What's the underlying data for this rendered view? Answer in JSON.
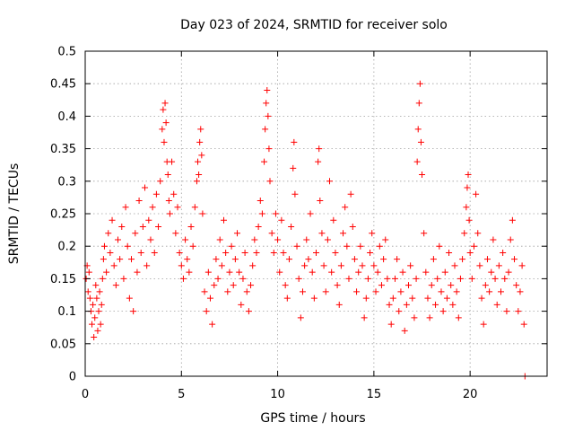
{
  "chart_data": {
    "type": "scatter",
    "title": "Day 023 of 2024, SRMTID for receiver solo",
    "xlabel": "GPS time / hours",
    "ylabel": "SRMTID / TECUs",
    "xlim": [
      0,
      24
    ],
    "ylim": [
      0,
      0.5
    ],
    "x_ticks": [
      0,
      5,
      10,
      15,
      20
    ],
    "x_tick_labels": [
      "0",
      "5",
      "10",
      "15",
      "20"
    ],
    "y_ticks": [
      0,
      0.05,
      0.1,
      0.15,
      0.2,
      0.25,
      0.3,
      0.35,
      0.4,
      0.45,
      0.5
    ],
    "y_tick_labels": [
      "0",
      "0.05",
      "0.1",
      "0.15",
      "0.2",
      "0.25",
      "0.3",
      "0.35",
      "0.4",
      "0.45",
      "0.5"
    ],
    "grid": true,
    "marker": "plus",
    "color": "#ff0000",
    "series": [
      {
        "name": "SRMTID",
        "points": [
          [
            0.05,
            0.15
          ],
          [
            0.1,
            0.17
          ],
          [
            0.15,
            0.13
          ],
          [
            0.2,
            0.16
          ],
          [
            0.25,
            0.12
          ],
          [
            0.3,
            0.1
          ],
          [
            0.35,
            0.08
          ],
          [
            0.4,
            0.11
          ],
          [
            0.45,
            0.06
          ],
          [
            0.5,
            0.09
          ],
          [
            0.55,
            0.14
          ],
          [
            0.6,
            0.12
          ],
          [
            0.65,
            0.07
          ],
          [
            0.7,
            0.1
          ],
          [
            0.75,
            0.13
          ],
          [
            0.8,
            0.08
          ],
          [
            0.85,
            0.11
          ],
          [
            0.9,
            0.15
          ],
          [
            0.95,
            0.18
          ],
          [
            1.0,
            0.2
          ],
          [
            1.1,
            0.16
          ],
          [
            1.2,
            0.22
          ],
          [
            1.3,
            0.19
          ],
          [
            1.4,
            0.24
          ],
          [
            1.5,
            0.17
          ],
          [
            1.6,
            0.14
          ],
          [
            1.7,
            0.21
          ],
          [
            1.8,
            0.18
          ],
          [
            1.9,
            0.23
          ],
          [
            2.0,
            0.15
          ],
          [
            2.1,
            0.26
          ],
          [
            2.2,
            0.2
          ],
          [
            2.3,
            0.12
          ],
          [
            2.4,
            0.18
          ],
          [
            2.5,
            0.1
          ],
          [
            2.6,
            0.22
          ],
          [
            2.7,
            0.16
          ],
          [
            2.8,
            0.27
          ],
          [
            2.9,
            0.19
          ],
          [
            3.0,
            0.23
          ],
          [
            3.1,
            0.29
          ],
          [
            3.2,
            0.17
          ],
          [
            3.3,
            0.24
          ],
          [
            3.4,
            0.21
          ],
          [
            3.5,
            0.26
          ],
          [
            3.6,
            0.19
          ],
          [
            3.7,
            0.28
          ],
          [
            3.8,
            0.23
          ],
          [
            3.9,
            0.3
          ],
          [
            4.0,
            0.38
          ],
          [
            4.05,
            0.41
          ],
          [
            4.1,
            0.36
          ],
          [
            4.15,
            0.42
          ],
          [
            4.2,
            0.39
          ],
          [
            4.25,
            0.33
          ],
          [
            4.3,
            0.31
          ],
          [
            4.35,
            0.27
          ],
          [
            4.4,
            0.25
          ],
          [
            4.5,
            0.33
          ],
          [
            4.6,
            0.28
          ],
          [
            4.7,
            0.22
          ],
          [
            4.8,
            0.26
          ],
          [
            4.9,
            0.19
          ],
          [
            5.0,
            0.17
          ],
          [
            5.1,
            0.15
          ],
          [
            5.2,
            0.21
          ],
          [
            5.3,
            0.18
          ],
          [
            5.4,
            0.16
          ],
          [
            5.5,
            0.23
          ],
          [
            5.6,
            0.2
          ],
          [
            5.7,
            0.26
          ],
          [
            5.8,
            0.3
          ],
          [
            5.85,
            0.33
          ],
          [
            5.9,
            0.31
          ],
          [
            5.95,
            0.36
          ],
          [
            6.0,
            0.38
          ],
          [
            6.05,
            0.34
          ],
          [
            6.1,
            0.25
          ],
          [
            6.2,
            0.13
          ],
          [
            6.3,
            0.1
          ],
          [
            6.4,
            0.16
          ],
          [
            6.5,
            0.12
          ],
          [
            6.6,
            0.08
          ],
          [
            6.7,
            0.14
          ],
          [
            6.8,
            0.18
          ],
          [
            6.9,
            0.15
          ],
          [
            7.0,
            0.21
          ],
          [
            7.1,
            0.17
          ],
          [
            7.2,
            0.24
          ],
          [
            7.3,
            0.19
          ],
          [
            7.4,
            0.13
          ],
          [
            7.5,
            0.16
          ],
          [
            7.6,
            0.2
          ],
          [
            7.7,
            0.14
          ],
          [
            7.8,
            0.18
          ],
          [
            7.9,
            0.22
          ],
          [
            8.0,
            0.16
          ],
          [
            8.1,
            0.11
          ],
          [
            8.2,
            0.15
          ],
          [
            8.3,
            0.19
          ],
          [
            8.4,
            0.13
          ],
          [
            8.5,
            0.1
          ],
          [
            8.6,
            0.14
          ],
          [
            8.7,
            0.17
          ],
          [
            8.8,
            0.21
          ],
          [
            8.9,
            0.19
          ],
          [
            9.0,
            0.23
          ],
          [
            9.1,
            0.27
          ],
          [
            9.2,
            0.25
          ],
          [
            9.3,
            0.33
          ],
          [
            9.35,
            0.38
          ],
          [
            9.4,
            0.42
          ],
          [
            9.45,
            0.44
          ],
          [
            9.5,
            0.4
          ],
          [
            9.55,
            0.35
          ],
          [
            9.6,
            0.3
          ],
          [
            9.7,
            0.22
          ],
          [
            9.8,
            0.19
          ],
          [
            9.9,
            0.25
          ],
          [
            10.0,
            0.21
          ],
          [
            10.1,
            0.16
          ],
          [
            10.2,
            0.24
          ],
          [
            10.3,
            0.19
          ],
          [
            10.4,
            0.14
          ],
          [
            10.5,
            0.12
          ],
          [
            10.6,
            0.18
          ],
          [
            10.7,
            0.23
          ],
          [
            10.8,
            0.32
          ],
          [
            10.85,
            0.36
          ],
          [
            10.9,
            0.28
          ],
          [
            11.0,
            0.2
          ],
          [
            11.1,
            0.15
          ],
          [
            11.2,
            0.09
          ],
          [
            11.3,
            0.13
          ],
          [
            11.4,
            0.17
          ],
          [
            11.5,
            0.21
          ],
          [
            11.6,
            0.18
          ],
          [
            11.7,
            0.25
          ],
          [
            11.8,
            0.16
          ],
          [
            11.9,
            0.12
          ],
          [
            12.0,
            0.19
          ],
          [
            12.1,
            0.33
          ],
          [
            12.15,
            0.35
          ],
          [
            12.2,
            0.27
          ],
          [
            12.3,
            0.22
          ],
          [
            12.4,
            0.17
          ],
          [
            12.5,
            0.13
          ],
          [
            12.6,
            0.21
          ],
          [
            12.7,
            0.3
          ],
          [
            12.8,
            0.16
          ],
          [
            12.9,
            0.24
          ],
          [
            13.0,
            0.19
          ],
          [
            13.1,
            0.14
          ],
          [
            13.2,
            0.11
          ],
          [
            13.3,
            0.17
          ],
          [
            13.4,
            0.22
          ],
          [
            13.5,
            0.26
          ],
          [
            13.6,
            0.2
          ],
          [
            13.7,
            0.15
          ],
          [
            13.8,
            0.28
          ],
          [
            13.9,
            0.23
          ],
          [
            14.0,
            0.18
          ],
          [
            14.1,
            0.13
          ],
          [
            14.2,
            0.16
          ],
          [
            14.3,
            0.2
          ],
          [
            14.4,
            0.17
          ],
          [
            14.5,
            0.09
          ],
          [
            14.6,
            0.12
          ],
          [
            14.7,
            0.15
          ],
          [
            14.8,
            0.19
          ],
          [
            14.9,
            0.22
          ],
          [
            15.0,
            0.17
          ],
          [
            15.1,
            0.13
          ],
          [
            15.2,
            0.16
          ],
          [
            15.3,
            0.2
          ],
          [
            15.4,
            0.14
          ],
          [
            15.5,
            0.18
          ],
          [
            15.6,
            0.21
          ],
          [
            15.7,
            0.15
          ],
          [
            15.8,
            0.11
          ],
          [
            15.9,
            0.08
          ],
          [
            16.0,
            0.12
          ],
          [
            16.1,
            0.15
          ],
          [
            16.2,
            0.18
          ],
          [
            16.3,
            0.1
          ],
          [
            16.4,
            0.13
          ],
          [
            16.5,
            0.16
          ],
          [
            16.6,
            0.07
          ],
          [
            16.7,
            0.11
          ],
          [
            16.8,
            0.14
          ],
          [
            16.9,
            0.17
          ],
          [
            17.0,
            0.12
          ],
          [
            17.1,
            0.09
          ],
          [
            17.2,
            0.15
          ],
          [
            17.25,
            0.33
          ],
          [
            17.3,
            0.38
          ],
          [
            17.35,
            0.42
          ],
          [
            17.4,
            0.45
          ],
          [
            17.45,
            0.36
          ],
          [
            17.5,
            0.31
          ],
          [
            17.6,
            0.22
          ],
          [
            17.7,
            0.16
          ],
          [
            17.8,
            0.12
          ],
          [
            17.9,
            0.09
          ],
          [
            18.0,
            0.14
          ],
          [
            18.1,
            0.18
          ],
          [
            18.2,
            0.11
          ],
          [
            18.3,
            0.15
          ],
          [
            18.4,
            0.2
          ],
          [
            18.5,
            0.13
          ],
          [
            18.6,
            0.1
          ],
          [
            18.7,
            0.16
          ],
          [
            18.8,
            0.12
          ],
          [
            18.9,
            0.19
          ],
          [
            19.0,
            0.14
          ],
          [
            19.1,
            0.11
          ],
          [
            19.2,
            0.17
          ],
          [
            19.3,
            0.13
          ],
          [
            19.4,
            0.09
          ],
          [
            19.5,
            0.15
          ],
          [
            19.6,
            0.18
          ],
          [
            19.7,
            0.22
          ],
          [
            19.8,
            0.26
          ],
          [
            19.85,
            0.29
          ],
          [
            19.9,
            0.31
          ],
          [
            19.95,
            0.24
          ],
          [
            20.0,
            0.19
          ],
          [
            20.1,
            0.15
          ],
          [
            20.2,
            0.2
          ],
          [
            20.3,
            0.28
          ],
          [
            20.4,
            0.22
          ],
          [
            20.5,
            0.17
          ],
          [
            20.6,
            0.12
          ],
          [
            20.7,
            0.08
          ],
          [
            20.8,
            0.14
          ],
          [
            20.9,
            0.18
          ],
          [
            21.0,
            0.13
          ],
          [
            21.1,
            0.16
          ],
          [
            21.2,
            0.21
          ],
          [
            21.3,
            0.15
          ],
          [
            21.4,
            0.11
          ],
          [
            21.5,
            0.17
          ],
          [
            21.6,
            0.13
          ],
          [
            21.7,
            0.19
          ],
          [
            21.8,
            0.15
          ],
          [
            21.9,
            0.1
          ],
          [
            22.0,
            0.16
          ],
          [
            22.1,
            0.21
          ],
          [
            22.2,
            0.24
          ],
          [
            22.3,
            0.18
          ],
          [
            22.4,
            0.14
          ],
          [
            22.5,
            0.1
          ],
          [
            22.6,
            0.13
          ],
          [
            22.7,
            0.17
          ],
          [
            22.8,
            0.08
          ],
          [
            22.85,
            0.0
          ]
        ]
      }
    ]
  }
}
